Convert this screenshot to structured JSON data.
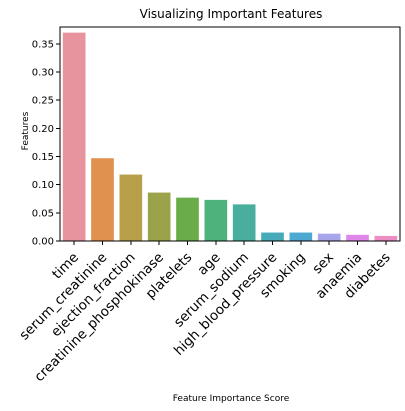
{
  "chart_data": {
    "type": "bar",
    "title": "Visualizing Important Features",
    "xlabel": "Feature Importance Score",
    "ylabel": "Features",
    "categories": [
      "time",
      "serum_creatinine",
      "ejection_fraction",
      "creatinine_phosphokinase",
      "platelets",
      "age",
      "serum_sodium",
      "high_blood_pressure",
      "smoking",
      "sex",
      "anaemia",
      "diabetes"
    ],
    "values": [
      0.37,
      0.147,
      0.118,
      0.086,
      0.077,
      0.073,
      0.065,
      0.015,
      0.015,
      0.013,
      0.011,
      0.009
    ],
    "colors": [
      "#e8949f",
      "#e0904f",
      "#b8a04a",
      "#9ba34a",
      "#6aac48",
      "#4db27b",
      "#4aae9e",
      "#46aab8",
      "#4da9d2",
      "#a8a5ea",
      "#e088ea",
      "#ec8ec4"
    ],
    "ylim": [
      0,
      0.38
    ],
    "yticks": [
      "0.00",
      "0.05",
      "0.10",
      "0.15",
      "0.20",
      "0.25",
      "0.30",
      "0.35"
    ],
    "ytick_values": [
      0,
      0.05,
      0.1,
      0.15,
      0.2,
      0.25,
      0.3,
      0.35
    ],
    "grid": false,
    "legend": "none"
  }
}
